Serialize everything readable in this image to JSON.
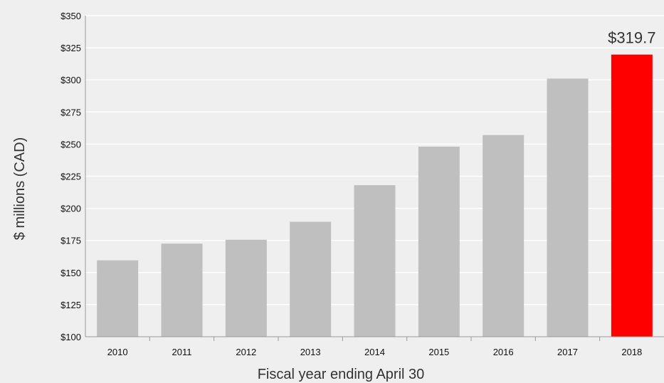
{
  "chart_data": {
    "type": "bar",
    "categories": [
      "2010",
      "2011",
      "2012",
      "2013",
      "2014",
      "2015",
      "2016",
      "2017",
      "2018"
    ],
    "values": [
      159.5,
      172.5,
      175.5,
      189.5,
      218,
      248,
      257,
      301,
      319.7
    ],
    "y_tick_labels": [
      "$100",
      "$125",
      "$150",
      "$175",
      "$200",
      "$225",
      "$250",
      "$275",
      "$300",
      "$325",
      "$350"
    ],
    "xlabel": "Fiscal year ending April 30",
    "ylabel": "$  millions (CAD)",
    "ylim": [
      100,
      350
    ],
    "grid": true,
    "highlight_index": 8,
    "data_labels": [
      {
        "index": 8,
        "text": "$319.7"
      }
    ],
    "colors": {
      "background": "#efefef",
      "bar": "#bfbfbf",
      "highlight": "#ff0000",
      "grid": "#ffffff",
      "axis": "#999999"
    }
  }
}
